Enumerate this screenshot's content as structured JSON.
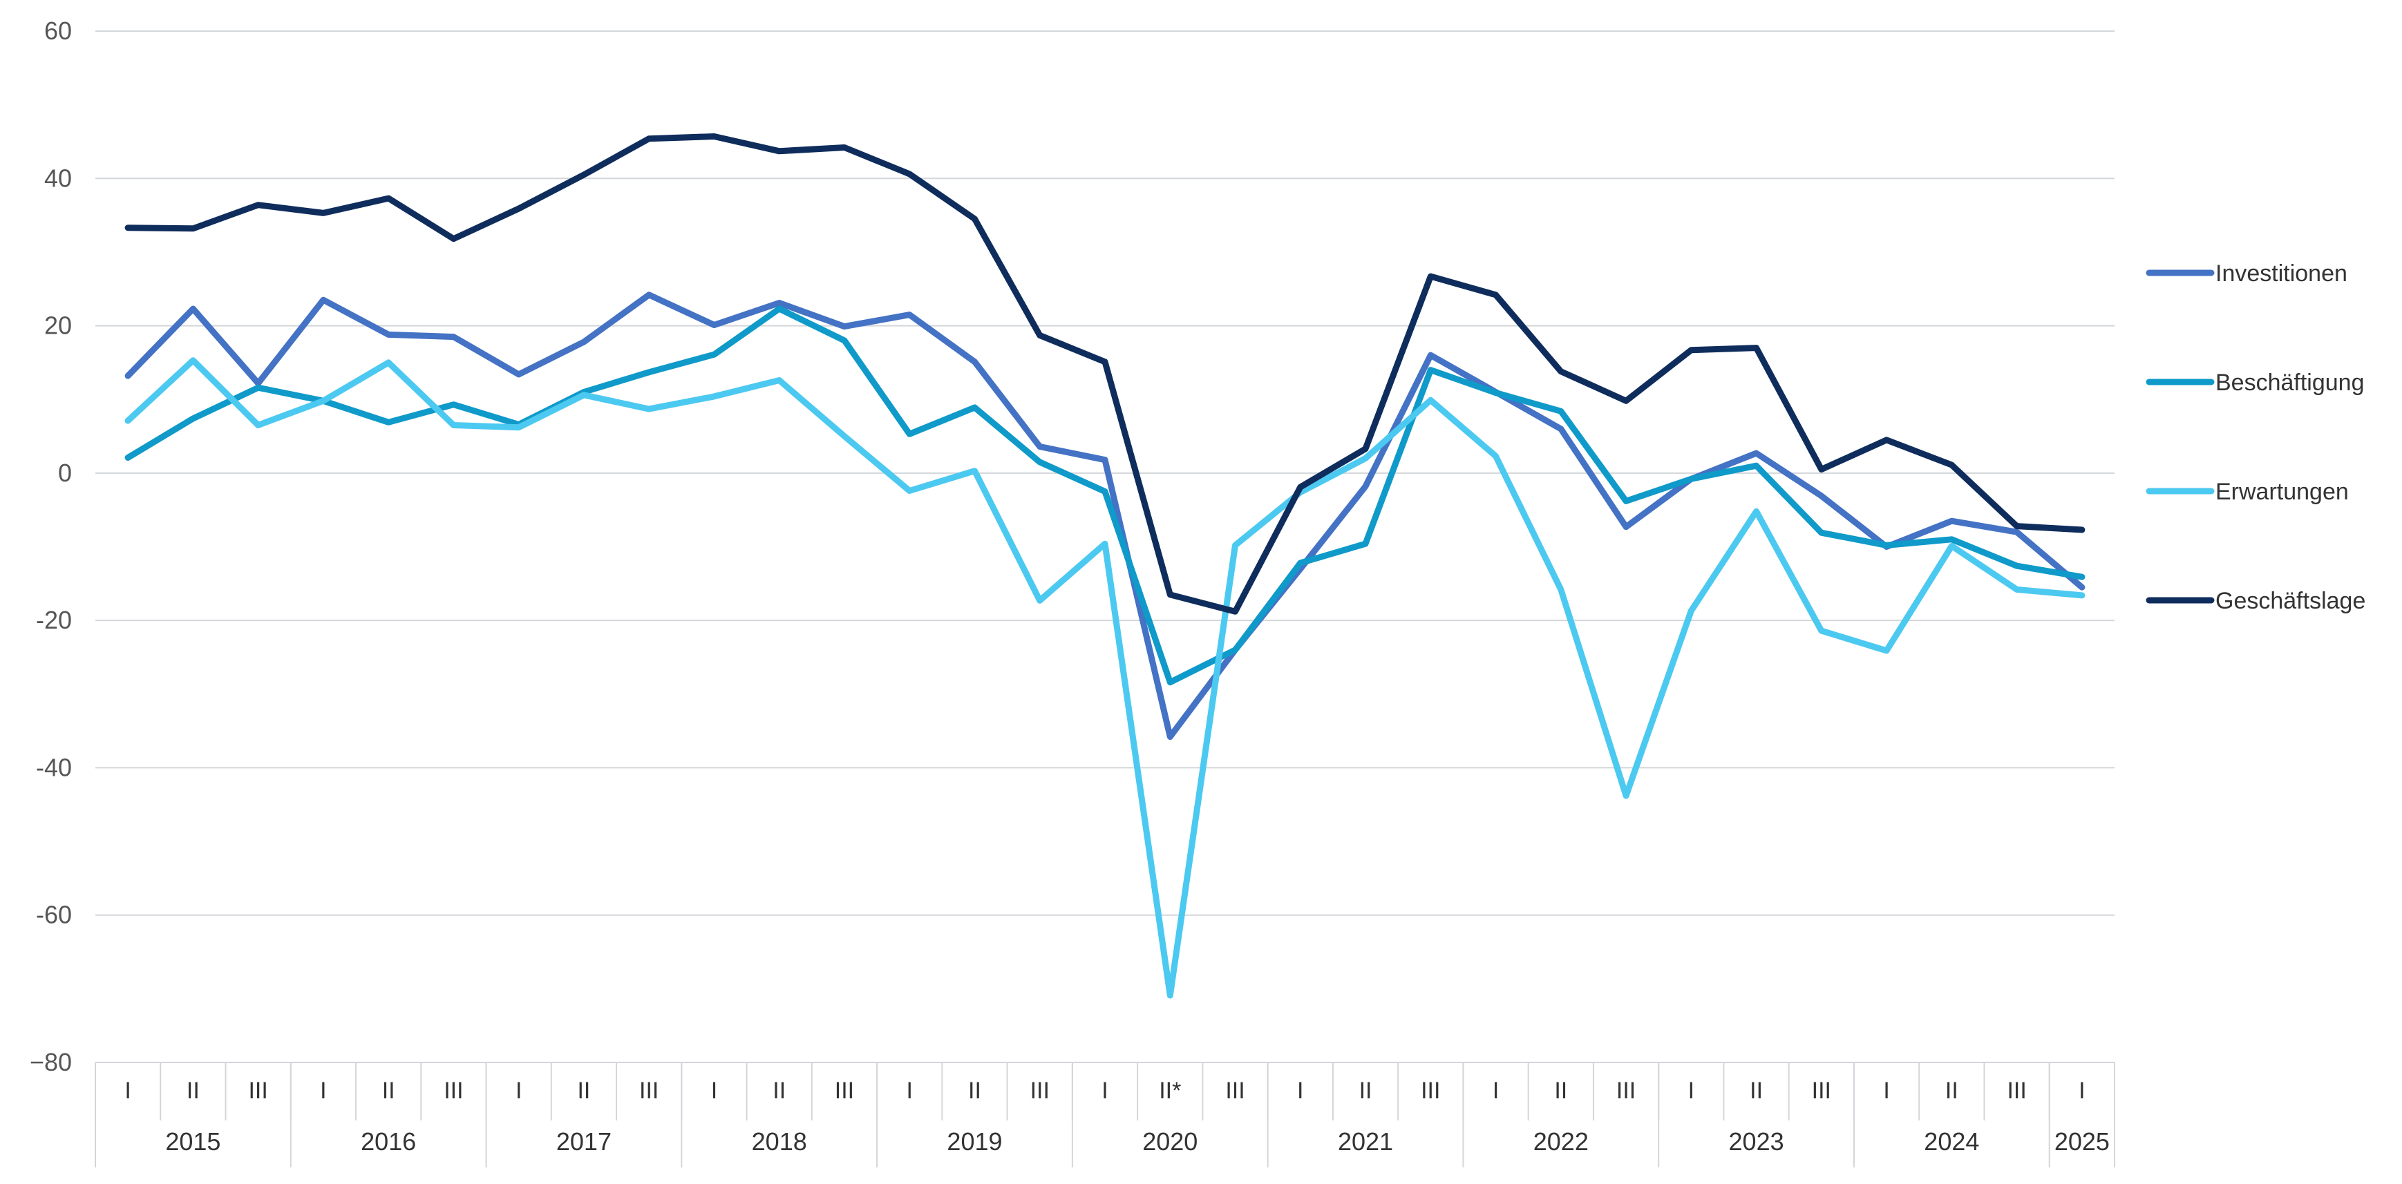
{
  "chart_data": {
    "type": "line",
    "ylim": [
      -80,
      60
    ],
    "yticks": [
      60,
      40,
      20,
      0,
      -20,
      -40,
      -60,
      -80
    ],
    "ytick_labels": [
      "60",
      "40",
      "20",
      "0",
      "-20",
      "-40",
      "-60",
      "−80"
    ],
    "grid": true,
    "legend_position": "right",
    "quarters": [
      "I",
      "II",
      "III",
      "I",
      "II",
      "III",
      "I",
      "II",
      "III",
      "I",
      "II",
      "III",
      "I",
      "II",
      "III",
      "I",
      "II*",
      "III",
      "I",
      "II",
      "III",
      "I",
      "II",
      "III",
      "I",
      "II",
      "III",
      "I",
      "II",
      "III",
      "I"
    ],
    "years": [
      {
        "label": "2015",
        "quarters": 3
      },
      {
        "label": "2016",
        "quarters": 3
      },
      {
        "label": "2017",
        "quarters": 3
      },
      {
        "label": "2018",
        "quarters": 3
      },
      {
        "label": "2019",
        "quarters": 3
      },
      {
        "label": "2020",
        "quarters": 3
      },
      {
        "label": "2021",
        "quarters": 3
      },
      {
        "label": "2022",
        "quarters": 3
      },
      {
        "label": "2023",
        "quarters": 3
      },
      {
        "label": "2024",
        "quarters": 3
      },
      {
        "label": "2025",
        "quarters": 1
      }
    ],
    "series": [
      {
        "name": "Investitionen",
        "color": "#4472c4",
        "values": [
          13.2,
          22.3,
          12.2,
          23.5,
          18.8,
          18.5,
          13.4,
          17.8,
          24.2,
          20.1,
          23.1,
          19.9,
          21.5,
          15.1,
          3.6,
          1.8,
          -35.8,
          -24.0,
          -13.0,
          -1.8,
          16.0,
          11.0,
          6.0,
          -7.3,
          -0.8,
          2.7,
          -3.1,
          -10.0,
          -6.5,
          -8.0,
          -15.5
        ]
      },
      {
        "name": "Beschäftigung",
        "color": "#0f9ac9",
        "values": [
          2.1,
          7.4,
          11.6,
          9.8,
          6.9,
          9.3,
          6.6,
          11.0,
          13.7,
          16.1,
          22.3,
          18.0,
          5.3,
          8.9,
          1.5,
          -2.5,
          -28.4,
          -24.0,
          -12.2,
          -9.6,
          14.0,
          10.9,
          8.4,
          -3.8,
          -0.8,
          1.0,
          -8.1,
          -9.8,
          -9.0,
          -12.6,
          -14.1
        ]
      },
      {
        "name": "Erwartungen",
        "color": "#4cc9f0",
        "values": [
          7.1,
          15.3,
          6.5,
          9.8,
          15.0,
          6.5,
          6.2,
          10.6,
          8.7,
          10.4,
          12.6,
          5.0,
          -2.4,
          0.3,
          -17.3,
          -9.6,
          -70.9,
          -9.8,
          -2.6,
          2.0,
          9.9,
          2.3,
          -15.8,
          -43.8,
          -18.7,
          -5.2,
          -21.4,
          -24.1,
          -9.9,
          -15.8,
          -16.6
        ]
      },
      {
        "name": "Geschäftslage",
        "color": "#0f2d5c",
        "values": [
          33.3,
          33.2,
          36.4,
          35.3,
          37.3,
          31.8,
          35.9,
          40.5,
          45.4,
          45.7,
          43.7,
          44.2,
          40.6,
          34.5,
          18.7,
          15.1,
          -16.5,
          -18.8,
          -1.9,
          3.3,
          26.7,
          24.2,
          13.8,
          9.8,
          16.7,
          17.0,
          0.5,
          4.5,
          1.1,
          -7.2,
          -7.7
        ]
      }
    ]
  }
}
